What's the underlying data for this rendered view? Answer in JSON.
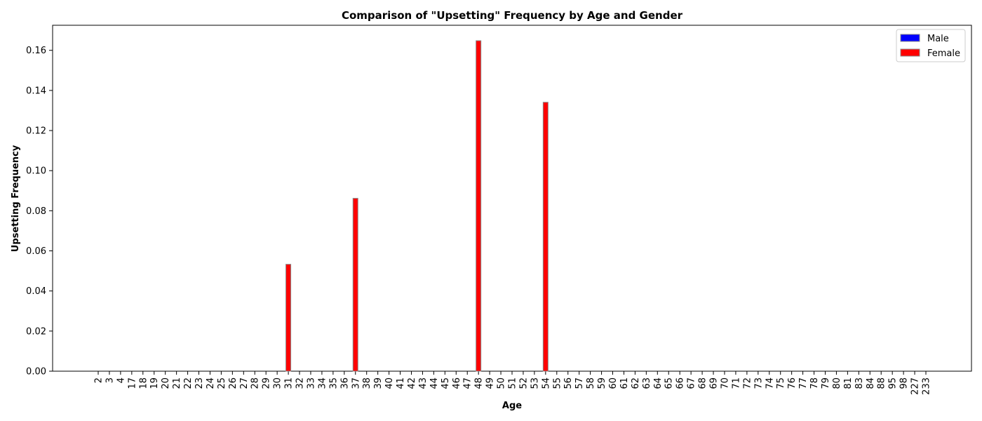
{
  "chart_data": {
    "type": "bar",
    "title": "Comparison of \"Upsetting\" Frequency by Age and Gender",
    "xlabel": "Age",
    "ylabel": "Upsetting Frequency",
    "ylim": [
      0,
      0.1725
    ],
    "yticks": [
      0.0,
      0.02,
      0.04,
      0.06,
      0.08,
      0.1,
      0.12,
      0.14,
      0.16
    ],
    "ytick_labels": [
      "0.00",
      "0.02",
      "0.04",
      "0.06",
      "0.08",
      "0.10",
      "0.12",
      "0.14",
      "0.16"
    ],
    "grid": false,
    "legend_position": "top-right",
    "categories": [
      "2",
      "3",
      "4",
      "17",
      "18",
      "19",
      "20",
      "21",
      "22",
      "23",
      "24",
      "25",
      "26",
      "27",
      "28",
      "29",
      "30",
      "31",
      "32",
      "33",
      "34",
      "35",
      "36",
      "37",
      "38",
      "39",
      "40",
      "41",
      "42",
      "43",
      "44",
      "45",
      "46",
      "47",
      "48",
      "49",
      "50",
      "51",
      "52",
      "53",
      "54",
      "55",
      "56",
      "57",
      "58",
      "59",
      "60",
      "61",
      "62",
      "63",
      "64",
      "65",
      "66",
      "67",
      "68",
      "69",
      "70",
      "71",
      "72",
      "73",
      "74",
      "75",
      "76",
      "77",
      "78",
      "79",
      "80",
      "81",
      "83",
      "84",
      "88",
      "95",
      "98",
      "227",
      "233"
    ],
    "series": [
      {
        "name": "Male",
        "color": "#0000ff",
        "values": [
          0,
          0,
          0,
          0,
          0,
          0,
          0,
          0,
          0,
          0,
          0,
          0,
          0,
          0,
          0,
          0,
          0,
          0,
          0,
          0,
          0,
          0,
          0,
          0,
          0,
          0,
          0,
          0,
          0,
          0,
          0,
          0,
          0,
          0,
          0,
          0,
          0,
          0,
          0,
          0,
          0,
          0,
          0,
          0,
          0,
          0,
          0,
          0,
          0,
          0,
          0,
          0,
          0,
          0,
          0,
          0,
          0,
          0,
          0,
          0,
          0,
          0,
          0,
          0,
          0,
          0,
          0,
          0,
          0,
          0,
          0,
          0,
          0,
          0,
          0
        ]
      },
      {
        "name": "Female",
        "color": "#ff0000",
        "values": [
          0,
          0,
          0,
          0,
          0,
          0,
          0,
          0,
          0,
          0,
          0,
          0,
          0,
          0,
          0,
          0,
          0,
          0.0533,
          0,
          0,
          0,
          0,
          0,
          0.0862,
          0,
          0,
          0,
          0,
          0,
          0,
          0,
          0,
          0,
          0,
          0.1648,
          0,
          0,
          0,
          0,
          0,
          0.1341,
          0,
          0,
          0,
          0,
          0,
          0,
          0,
          0,
          0,
          0,
          0,
          0,
          0,
          0,
          0,
          0,
          0,
          0,
          0,
          0,
          0,
          0,
          0,
          0,
          0,
          0,
          0,
          0,
          0,
          0,
          0,
          0,
          0,
          0
        ]
      }
    ]
  }
}
